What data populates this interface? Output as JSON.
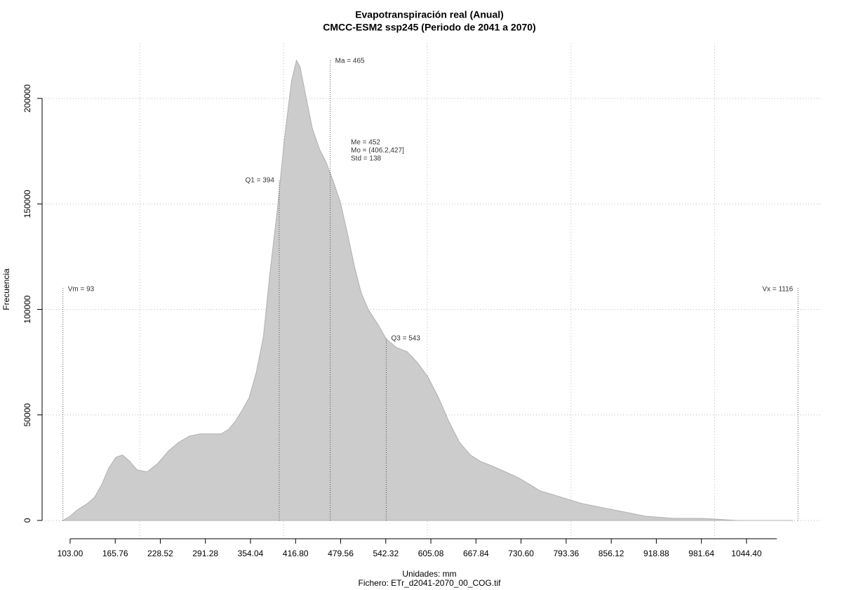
{
  "chart_data": {
    "type": "area",
    "title": "Evapotranspiración real (Anual)",
    "subtitle": "CMCC-ESM2 ssp245 (Periodo de 2041 a 2070)",
    "xlabel": "Unidades: mm",
    "caption": "Fichero: ETr_d2041-2070_00_COG.tif",
    "ylabel": "Frecuencia",
    "color": "#cccccc",
    "x": [
      93,
      103,
      113,
      127,
      137,
      147,
      157,
      167,
      176,
      186,
      196,
      210,
      225,
      240,
      254,
      269,
      284,
      298,
      313,
      323,
      333,
      342,
      352,
      362,
      372,
      381,
      391,
      401,
      411,
      418,
      423,
      430,
      440,
      450,
      459,
      469,
      479,
      489,
      499,
      508,
      518,
      533,
      543,
      557,
      572,
      586,
      601,
      616,
      630,
      645,
      660,
      674,
      689,
      709,
      728,
      743,
      757,
      777,
      796,
      816,
      845,
      875,
      904,
      943,
      982,
      1031,
      1080,
      1109
    ],
    "values": [
      0,
      2000,
      5000,
      8000,
      11000,
      17000,
      25000,
      30000,
      31000,
      28000,
      24000,
      23000,
      27000,
      33000,
      37000,
      40000,
      41000,
      41000,
      41000,
      43000,
      47000,
      52000,
      58000,
      70000,
      87000,
      117000,
      146000,
      180000,
      208000,
      218000,
      215000,
      203000,
      186000,
      176000,
      170000,
      161000,
      151000,
      136000,
      120000,
      108000,
      100000,
      92000,
      86000,
      82000,
      80000,
      75000,
      68000,
      58000,
      47000,
      37000,
      31000,
      28000,
      26000,
      23000,
      20000,
      17000,
      14000,
      12000,
      10000,
      8000,
      6000,
      4000,
      2000,
      1000,
      1000,
      0,
      0,
      0
    ],
    "xlim": [
      64,
      1148
    ],
    "ylim": [
      -9000,
      226000
    ],
    "xticks": [
      {
        "value": 103,
        "label": "103.00"
      },
      165.76,
      228.52,
      291.28,
      354.04,
      {
        "value": 416.8,
        "label": "416.80"
      },
      479.56,
      542.32,
      605.08,
      667.84,
      {
        "value": 730.6,
        "label": "730.60"
      },
      793.36,
      856.12,
      918.88,
      981.64,
      {
        "value": 1044.4,
        "label": "1044.40"
      }
    ],
    "yticks": [
      0,
      50000,
      100000,
      150000,
      200000
    ],
    "xgrid": [
      200,
      400,
      600,
      800,
      1000
    ],
    "grid": true,
    "markers": [
      {
        "label": "Vm = 93",
        "value": 93
      },
      {
        "label": "Q1 = 394",
        "value": 394
      },
      {
        "label": "Ma = 465",
        "value": 465
      },
      {
        "label": "Q3 = 543",
        "value": 543
      },
      {
        "label": "Vx = 1116",
        "value": 1116
      }
    ],
    "stats": [
      "Me = 452",
      "Mo = (406.2,427]",
      "Std = 138"
    ]
  }
}
